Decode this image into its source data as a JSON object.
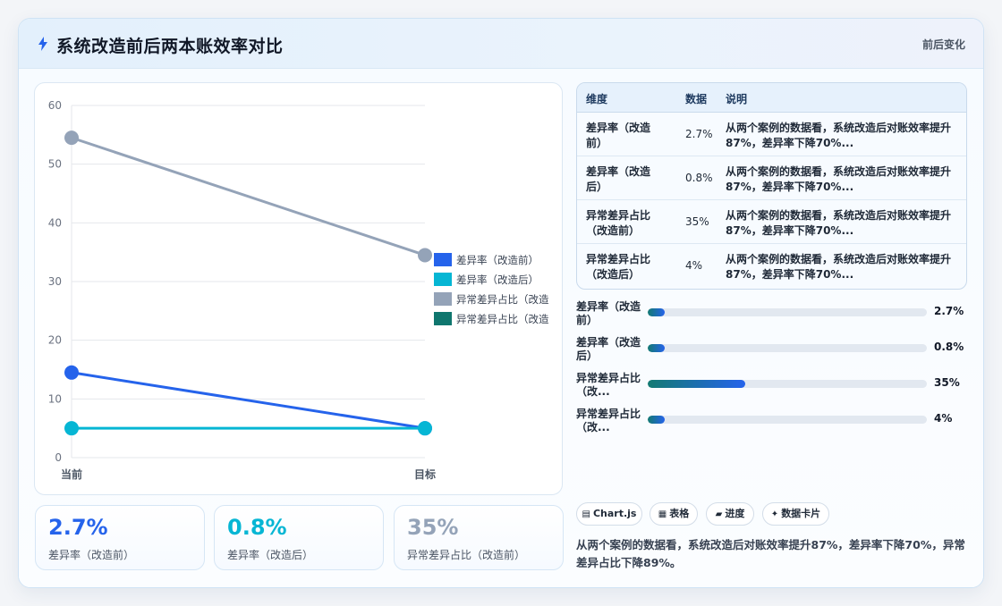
{
  "header": {
    "title": "系统改造前后两本账效率对比",
    "badge": "前后变化",
    "icon": "lightning-icon"
  },
  "chart_data": {
    "type": "line",
    "x": [
      "当前",
      "目标"
    ],
    "ylim": [
      0,
      60
    ],
    "yticks": [
      0,
      10,
      20,
      30,
      40,
      50,
      60
    ],
    "grid": true,
    "legend_position": "right",
    "series": [
      {
        "name": "差异率（改造前）",
        "values": [
          14.5,
          5
        ],
        "color": "#2563eb"
      },
      {
        "name": "差异率（改造后）",
        "values": [
          5,
          5
        ],
        "color": "#06b6d4"
      },
      {
        "name": "异常差异占比（改造",
        "values": [
          54.5,
          34.5
        ],
        "color": "#94a3b8"
      },
      {
        "name": "异常差异占比（改造",
        "values": [
          null,
          null
        ],
        "color": "#0f766e"
      }
    ]
  },
  "kpis": [
    {
      "value": "2.7%",
      "label": "差异率（改造前）",
      "color": "#2563eb"
    },
    {
      "value": "0.8%",
      "label": "差异率（改造后）",
      "color": "#06b6d4"
    },
    {
      "value": "35%",
      "label": "异常差异占比（改造前）",
      "color": "#94a3b8"
    }
  ],
  "table": {
    "headers": [
      "维度",
      "数据",
      "说明"
    ],
    "rows": [
      {
        "dim": "差异率（改造前）",
        "val": "2.7%",
        "desc": "从两个案例的数据看，系统改造后对账效率提升87%，差异率下降70%..."
      },
      {
        "dim": "差异率（改造后）",
        "val": "0.8%",
        "desc": "从两个案例的数据看，系统改造后对账效率提升87%，差异率下降70%..."
      },
      {
        "dim": "异常差异占比（改造前）",
        "val": "35%",
        "desc": "从两个案例的数据看，系统改造后对账效率提升87%，差异率下降70%..."
      },
      {
        "dim": "异常差异占比（改造后）",
        "val": "4%",
        "desc": "从两个案例的数据看，系统改造后对账效率提升87%，差异率下降70%..."
      }
    ]
  },
  "progress": [
    {
      "label": "差异率（改造前）",
      "value": "2.7%",
      "fraction": 0.027
    },
    {
      "label": "差异率（改造后）",
      "value": "0.8%",
      "fraction": 0.008
    },
    {
      "label": "异常差异占比（改...",
      "value": "35%",
      "fraction": 0.35
    },
    {
      "label": "异常差异占比（改...",
      "value": "4%",
      "fraction": 0.04
    }
  ],
  "chips": [
    {
      "icon": "▤",
      "label": "Chart.js"
    },
    {
      "icon": "▦",
      "label": "表格"
    },
    {
      "icon": "▰",
      "label": "进度"
    },
    {
      "icon": "✦",
      "label": "数据卡片"
    }
  ],
  "note": "从两个案例的数据看，系统改造后对账效率提升87%，差异率下降70%，异常差异占比下降89%。"
}
